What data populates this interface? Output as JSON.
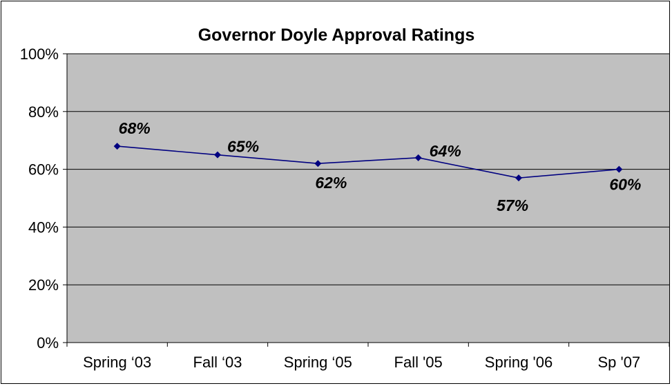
{
  "chart_data": {
    "type": "line",
    "title": "Governor Doyle Approval Ratings",
    "xlabel": "",
    "ylabel": "",
    "categories": [
      "Spring ‘03",
      "Fall ‘03",
      "Spring ‘05",
      "Fall '05",
      "Spring '06",
      "Sp '07"
    ],
    "series": [
      {
        "values": [
          68,
          65,
          62,
          64,
          57,
          60
        ]
      }
    ],
    "data_labels": [
      "68%",
      "65%",
      "62%",
      "64%",
      "57%",
      "60%"
    ],
    "y_tick_labels": [
      "0%",
      "20%",
      "40%",
      "60%",
      "80%",
      "100%"
    ],
    "y_ticks": [
      0,
      20,
      40,
      60,
      80,
      100
    ],
    "ylim": [
      0,
      100
    ],
    "grid": true,
    "legend": "none",
    "colors": {
      "plot_background": "#c0c0c0",
      "series_line": "#000080",
      "gridline": "#000000"
    }
  }
}
